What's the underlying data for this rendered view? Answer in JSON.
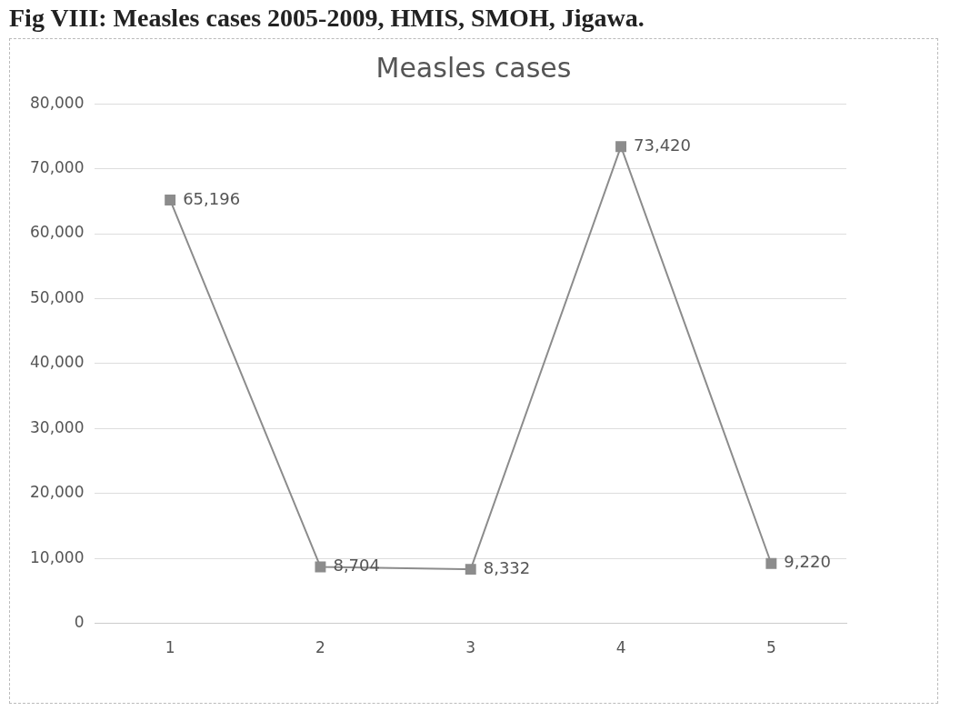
{
  "chart_data": {
    "type": "line",
    "title": "Fig VIII: Measles cases 2005-2009, HMIS, SMOH, Jigawa.",
    "subtitle": "Measles cases",
    "categories": [
      "1",
      "2",
      "3",
      "4",
      "5"
    ],
    "series": [
      {
        "color": "#8c8c8c",
        "values": [
          65196,
          8704,
          8332,
          73420,
          9220
        ],
        "value_labels": [
          "65,196",
          "8,704",
          "8,332",
          "73,420",
          "9,220"
        ]
      }
    ],
    "ylim": [
      0,
      80000
    ],
    "yticks": [
      0,
      {
        "value": 10000,
        "label": "10,000"
      },
      {
        "value": 20000,
        "label": "20,000"
      },
      {
        "value": 30000,
        "label": "30,000"
      },
      {
        "value": 40000,
        "label": "40,000"
      },
      {
        "value": 50000,
        "label": "50,000"
      },
      {
        "value": 60000,
        "label": "60,000"
      },
      {
        "value": 70000,
        "label": "70,000"
      },
      {
        "value": 80000,
        "label": "80,000"
      }
    ],
    "grid": "y",
    "legend": false,
    "marker": "square",
    "line_style": "solid"
  }
}
